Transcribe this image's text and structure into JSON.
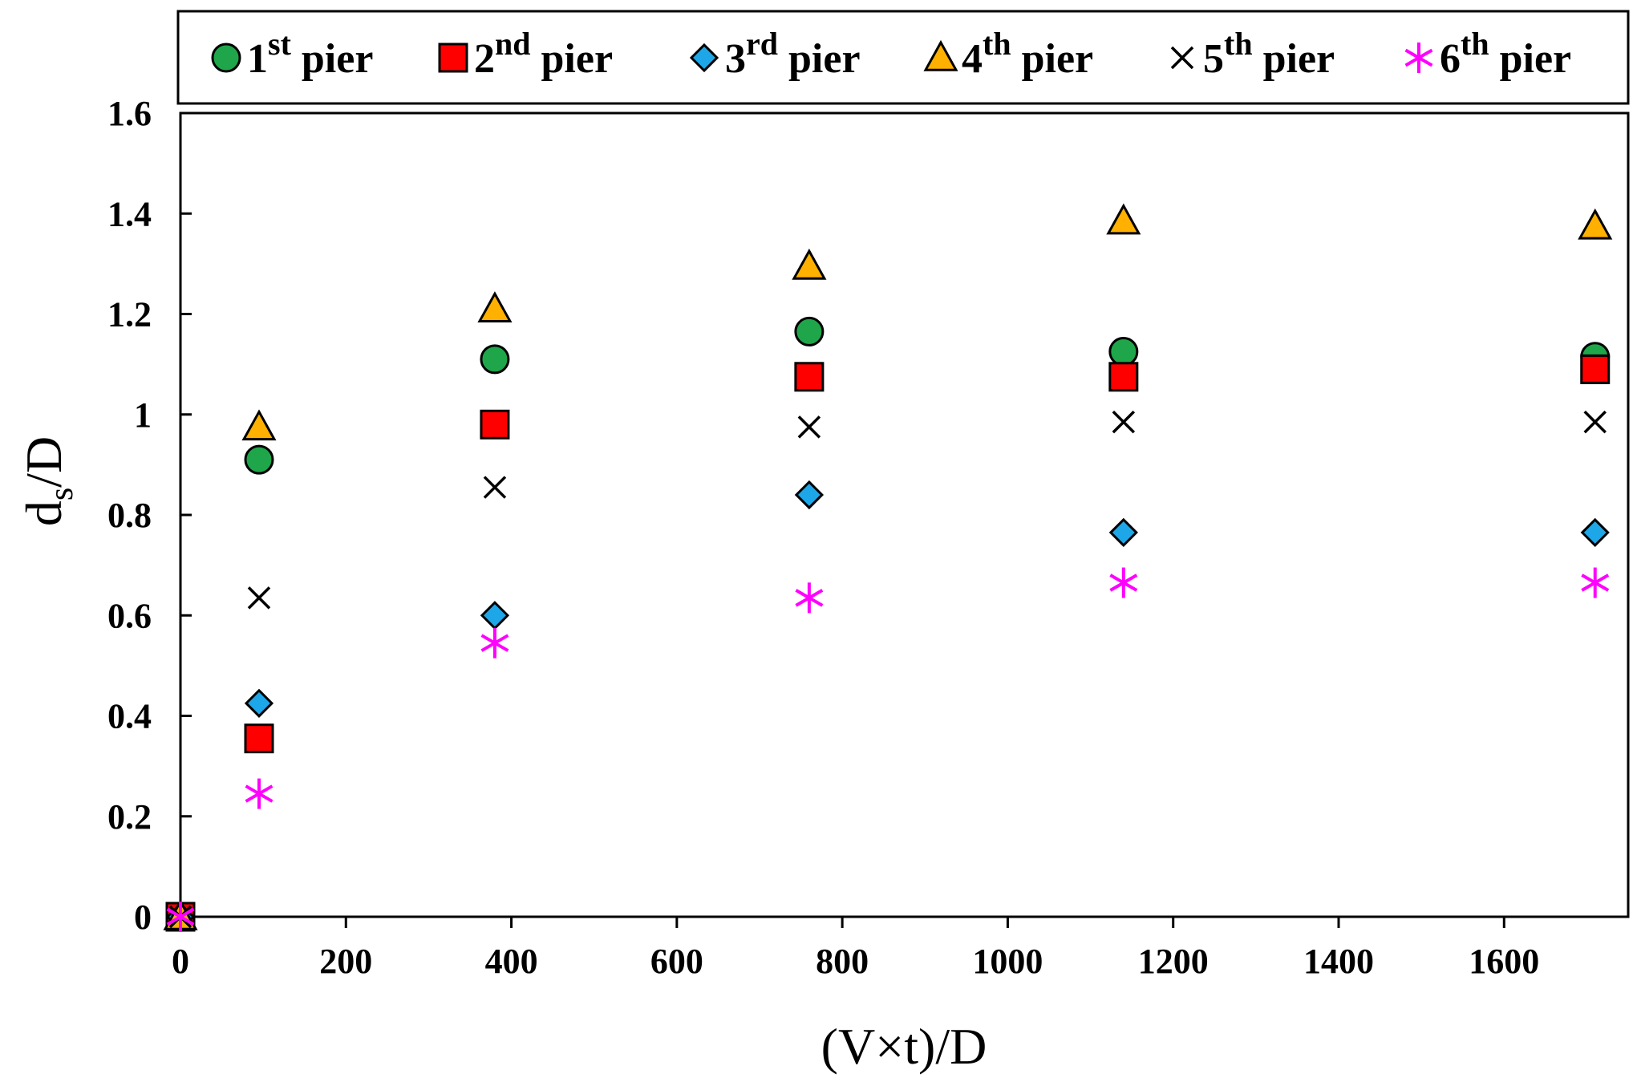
{
  "chart_data": {
    "type": "scatter",
    "title": "",
    "xlabel": "(V×t)/D",
    "ylabel_main": "d",
    "ylabel_sub": "s",
    "ylabel_tail": "/D",
    "xlim": [
      0,
      1750
    ],
    "ylim": [
      0,
      1.6
    ],
    "xticks": [
      0,
      200,
      400,
      600,
      800,
      1000,
      1200,
      1400,
      1600
    ],
    "xtick_labels": [
      "0",
      "200",
      "400",
      "600",
      "800",
      "1000",
      "1200",
      "1400",
      "1600"
    ],
    "yticks": [
      0,
      0.2,
      0.4,
      0.6,
      0.8,
      1.0,
      1.2,
      1.4,
      1.6
    ],
    "ytick_labels": [
      "0",
      "0.2",
      "0.4",
      "0.6",
      "0.8",
      "1",
      "1.2",
      "1.4",
      "1.6"
    ],
    "legend_position": "top",
    "x": [
      0,
      95,
      380,
      760,
      1140,
      1710
    ],
    "series": [
      {
        "name": "1st pier",
        "num": "1",
        "sup": "st",
        "word": "pier",
        "marker": "circle",
        "color": "#1fa64a",
        "values": [
          0,
          0.91,
          1.11,
          1.165,
          1.125,
          1.115
        ]
      },
      {
        "name": "2nd pier",
        "num": "2",
        "sup": "nd",
        "word": "pier",
        "marker": "square",
        "color": "#ff0000",
        "values": [
          0,
          0.355,
          0.98,
          1.075,
          1.075,
          1.09
        ]
      },
      {
        "name": "3rd pier",
        "num": "3",
        "sup": "rd",
        "word": "pier",
        "marker": "diamond",
        "color": "#1ea7e8",
        "values": [
          0,
          0.425,
          0.6,
          0.84,
          0.765,
          0.765
        ]
      },
      {
        "name": "4th pier",
        "num": "4",
        "sup": "th",
        "word": "pier",
        "marker": "triangle",
        "color": "#ffb000",
        "values": [
          0,
          0.975,
          1.21,
          1.295,
          1.385,
          1.375
        ]
      },
      {
        "name": "5th pier",
        "num": "5",
        "sup": "th",
        "word": "pier",
        "marker": "x",
        "color": "#000000",
        "values": [
          0,
          0.635,
          0.855,
          0.975,
          0.985,
          0.985
        ]
      },
      {
        "name": "6th pier",
        "num": "6",
        "sup": "th",
        "word": "pier",
        "marker": "star",
        "color": "#ff00ff",
        "values": [
          0,
          0.245,
          0.545,
          0.635,
          0.665,
          0.665
        ]
      }
    ]
  }
}
